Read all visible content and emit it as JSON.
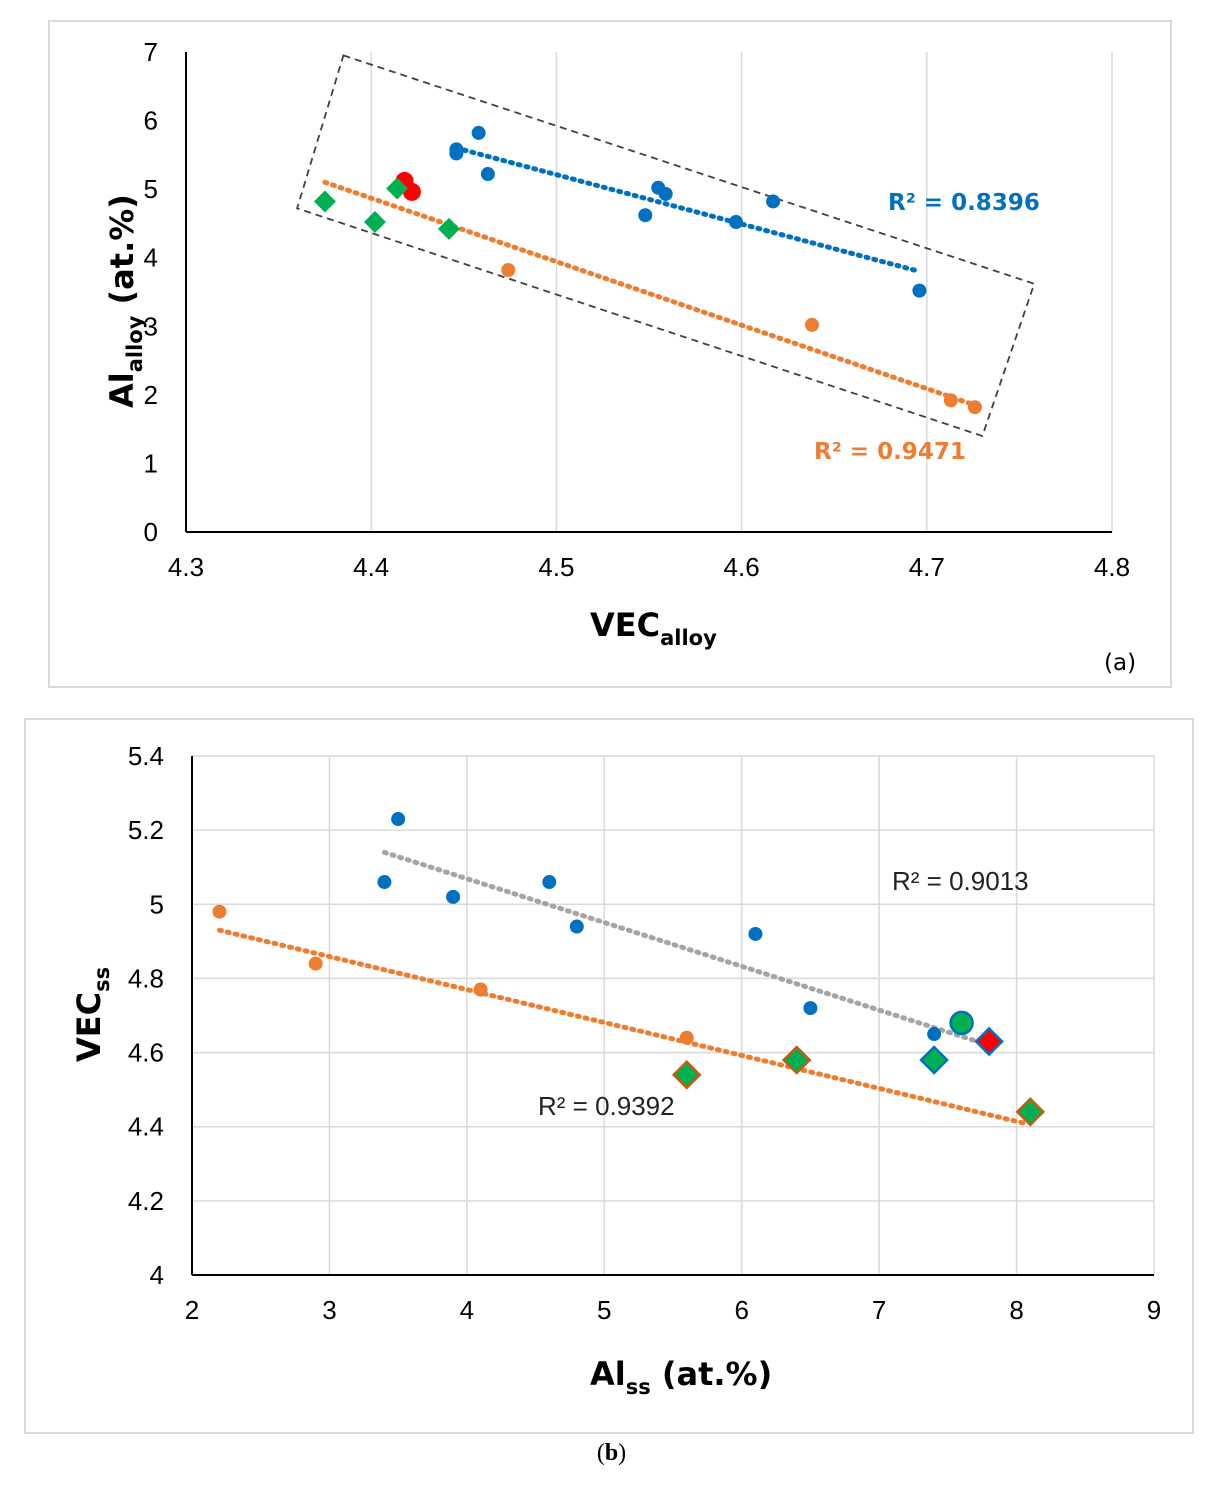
{
  "chart_data": [
    {
      "panel": "(a)",
      "type": "scatter",
      "xlabel": "VEC",
      "xlabel_sub": "alloy",
      "ylabel": "Al",
      "ylabel_sub": "alloy",
      "ylabel_unit": " (at.%)",
      "xlim": [
        4.3,
        4.8
      ],
      "ylim": [
        0,
        7
      ],
      "xticks": [
        "4.3",
        "4.4",
        "4.5",
        "4.6",
        "4.7",
        "4.8"
      ],
      "yticks": [
        "0",
        "1",
        "2",
        "3",
        "4",
        "5",
        "6",
        "7"
      ],
      "grid": "vertical",
      "series": [
        {
          "name": "blue",
          "marker": "circle",
          "color": "#0070c0",
          "points": [
            [
              4.446,
              5.52
            ],
            [
              4.446,
              5.58
            ],
            [
              4.458,
              5.82
            ],
            [
              4.463,
              5.22
            ],
            [
              4.548,
              4.62
            ],
            [
              4.555,
              5.02
            ],
            [
              4.559,
              4.93
            ],
            [
              4.597,
              4.52
            ],
            [
              4.617,
              4.82
            ],
            [
              4.696,
              3.52
            ]
          ]
        },
        {
          "name": "orange",
          "marker": "circle",
          "color": "#ed7d31",
          "points": [
            [
              4.474,
              3.82
            ],
            [
              4.638,
              3.02
            ],
            [
              4.713,
              1.92
            ],
            [
              4.726,
              1.82
            ]
          ]
        },
        {
          "name": "red",
          "marker": "circle-large",
          "color": "#ff0000",
          "points": [
            [
              4.418,
              5.12
            ],
            [
              4.422,
              4.96
            ]
          ]
        },
        {
          "name": "green",
          "marker": "diamond",
          "color": "#00b050",
          "points": [
            [
              4.375,
              4.82
            ],
            [
              4.402,
              4.52
            ],
            [
              4.414,
              5.01
            ],
            [
              4.442,
              4.42
            ]
          ]
        }
      ],
      "trendlines": [
        {
          "color": "#0070c0",
          "from": [
            4.446,
            5.6
          ],
          "to": [
            4.696,
            3.8
          ],
          "r2": "R² = 0.8396"
        },
        {
          "color": "#ed7d31",
          "from": [
            4.375,
            5.1
          ],
          "to": [
            4.726,
            1.85
          ],
          "r2": "R² = 0.9471"
        }
      ],
      "enclosure": {
        "style": "dashed",
        "corners": [
          [
            4.385,
            6.95
          ],
          [
            4.758,
            3.62
          ],
          [
            4.73,
            1.4
          ],
          [
            4.36,
            4.72
          ]
        ]
      }
    },
    {
      "panel": "(b)",
      "type": "scatter",
      "xlabel": "Al",
      "xlabel_sub": "ss",
      "xlabel_unit": " (at.%)",
      "ylabel": "VEC",
      "ylabel_sub": "ss",
      "xlim": [
        2,
        9
      ],
      "ylim": [
        4,
        5.4
      ],
      "xticks": [
        "2",
        "3",
        "4",
        "5",
        "6",
        "7",
        "8",
        "9"
      ],
      "yticks": [
        "4",
        "4.2",
        "4.4",
        "4.6",
        "4.8",
        "5",
        "5.2",
        "5.4"
      ],
      "grid": "both",
      "series": [
        {
          "name": "blue",
          "marker": "circle",
          "color": "#0070c0",
          "points": [
            [
              3.4,
              5.06
            ],
            [
              3.5,
              5.23
            ],
            [
              3.9,
              5.02
            ],
            [
              4.6,
              5.06
            ],
            [
              4.8,
              4.94
            ],
            [
              6.1,
              4.92
            ],
            [
              6.5,
              4.72
            ],
            [
              7.4,
              4.65
            ]
          ]
        },
        {
          "name": "orange",
          "marker": "circle",
          "color": "#ed7d31",
          "points": [
            [
              2.2,
              4.98
            ],
            [
              2.9,
              4.84
            ],
            [
              4.1,
              4.77
            ],
            [
              5.6,
              4.64
            ]
          ]
        },
        {
          "name": "green-orange-edge",
          "marker": "diamond",
          "color": "#00b050",
          "edge": "#c55a11",
          "points": [
            [
              5.6,
              4.54
            ],
            [
              6.4,
              4.58
            ],
            [
              8.1,
              4.44
            ]
          ]
        },
        {
          "name": "green-blue-edge",
          "marker": "diamond",
          "color": "#00b050",
          "edge": "#0070c0",
          "points": [
            [
              7.4,
              4.58
            ]
          ]
        },
        {
          "name": "green-circle",
          "marker": "circle-large",
          "color": "#00b050",
          "edge": "#0070c0",
          "points": [
            [
              7.6,
              4.68
            ]
          ]
        },
        {
          "name": "red",
          "marker": "diamond",
          "color": "#ff0000",
          "edge": "#0070c0",
          "points": [
            [
              7.8,
              4.63
            ]
          ]
        }
      ],
      "trendlines": [
        {
          "color": "#a5a5a5",
          "from": [
            3.4,
            5.14
          ],
          "to": [
            7.8,
            4.62
          ],
          "r2": "R² = 0.9013"
        },
        {
          "color": "#ed7d31",
          "from": [
            2.2,
            4.93
          ],
          "to": [
            8.05,
            4.41
          ],
          "r2": "R² = 0.9392"
        }
      ]
    }
  ],
  "caption_b_open": "(",
  "caption_b_letter": "b",
  "caption_b_close": ")"
}
